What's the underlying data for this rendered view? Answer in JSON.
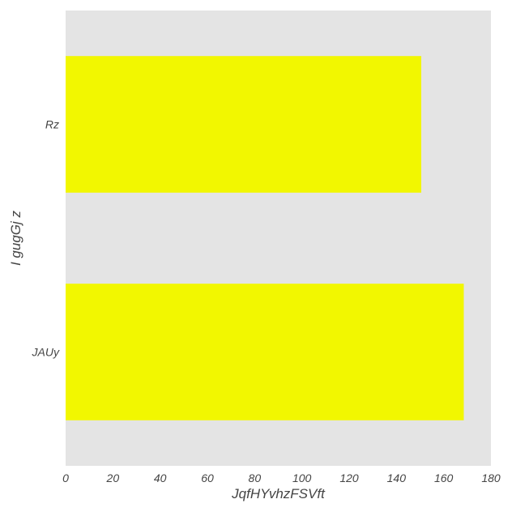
{
  "chart_data": {
    "type": "bar",
    "orientation": "horizontal",
    "categories": [
      "Rz",
      "JAUy"
    ],
    "values": [
      150.5,
      168.5
    ],
    "xlabel": "JqfHYvhzFSVft",
    "ylabel": "I gugGj z",
    "xlim": [
      0,
      180
    ],
    "xticks": [
      0,
      20,
      40,
      60,
      80,
      100,
      120,
      140,
      160,
      180
    ],
    "grid": false,
    "bar_color": "#f2f700",
    "plot_background": "#e4e4e4"
  }
}
